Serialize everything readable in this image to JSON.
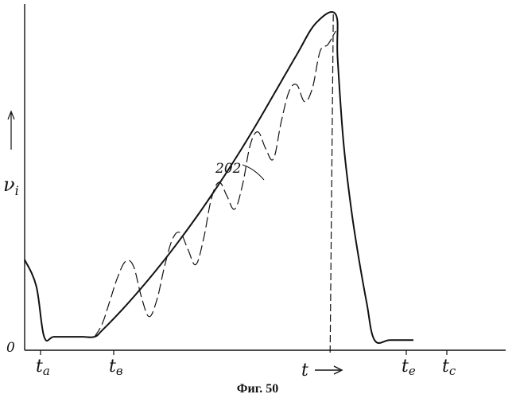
{
  "chart_data": {
    "type": "line",
    "title": "",
    "caption": "Фиг. 50",
    "ylabel": "ν",
    "ylabel_subscript": "i",
    "xlabel": "t",
    "y_origin_label": "0",
    "curve_label": "202",
    "x_ticks": [
      {
        "name": "ta",
        "base": "t",
        "sub": "a"
      },
      {
        "name": "tb",
        "base": "t",
        "sub": "в"
      },
      {
        "name": "te",
        "base": "t",
        "sub": "e"
      },
      {
        "name": "tc",
        "base": "t",
        "sub": "c"
      }
    ],
    "xlim": [
      0,
      1
    ],
    "ylim": [
      0,
      1
    ],
    "grid": false,
    "series": [
      {
        "style": "solid",
        "x": [
          0.0,
          0.03,
          0.05,
          0.075,
          0.12,
          0.15,
          0.18,
          0.2,
          0.25,
          0.3,
          0.35,
          0.4,
          0.45,
          0.5,
          0.55,
          0.6,
          0.65,
          0.7,
          0.75,
          0.8,
          0.805,
          0.82,
          0.84,
          0.86,
          0.88,
          0.9,
          0.94,
          1.0
        ],
        "y": [
          0.27,
          0.19,
          0.04,
          0.04,
          0.04,
          0.04,
          0.04,
          0.06,
          0.12,
          0.185,
          0.255,
          0.33,
          0.41,
          0.495,
          0.585,
          0.68,
          0.78,
          0.88,
          0.975,
          1.0,
          0.87,
          0.62,
          0.42,
          0.27,
          0.14,
          0.03,
          0.03,
          0.03
        ]
      },
      {
        "style": "dashed",
        "x": [
          0.18,
          0.2,
          0.22,
          0.24,
          0.26,
          0.28,
          0.3,
          0.32,
          0.34,
          0.36,
          0.38,
          0.4,
          0.42,
          0.44,
          0.46,
          0.48,
          0.5,
          0.52,
          0.54,
          0.56,
          0.58,
          0.6,
          0.62,
          0.64,
          0.66,
          0.68,
          0.7,
          0.72,
          0.74,
          0.76,
          0.78,
          0.8
        ],
        "y": [
          0.04,
          0.08,
          0.15,
          0.22,
          0.265,
          0.25,
          0.16,
          0.1,
          0.15,
          0.25,
          0.33,
          0.35,
          0.3,
          0.255,
          0.33,
          0.45,
          0.5,
          0.46,
          0.42,
          0.49,
          0.61,
          0.65,
          0.6,
          0.57,
          0.68,
          0.77,
          0.79,
          0.74,
          0.78,
          0.89,
          0.91,
          0.95
        ]
      }
    ]
  }
}
